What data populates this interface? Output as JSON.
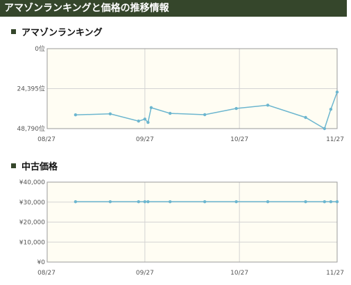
{
  "header": {
    "title": "アマゾンランキングと価格の推移情報"
  },
  "sections": {
    "ranking_title": "アマゾンランキング",
    "used_price_title": "中古価格"
  },
  "colors": {
    "header_bg": "#35462b",
    "plot_bg": "#fffdf3",
    "line": "#6cb6cf",
    "grid": "#d3d3d3"
  },
  "chart_data": [
    {
      "type": "line",
      "title": "アマゾンランキング",
      "inverted_y": true,
      "ylim": [
        0,
        48790
      ],
      "y_tick_labels": [
        "0位",
        "24,395位",
        "48,790位"
      ],
      "x_tick_labels": [
        "08/27",
        "09/27",
        "10/27",
        "11/27"
      ],
      "xlim": [
        "08/27",
        "11/27"
      ],
      "series": [
        {
          "points": [
            {
              "x": "09/05",
              "y": 40400
            },
            {
              "x": "09/16",
              "y": 39800
            },
            {
              "x": "09/25",
              "y": 44200
            },
            {
              "x": "09/27",
              "y": 43000
            },
            {
              "x": "09/28",
              "y": 45000
            },
            {
              "x": "09/29",
              "y": 36000
            },
            {
              "x": "10/05",
              "y": 39500
            },
            {
              "x": "10/16",
              "y": 40300
            },
            {
              "x": "10/26",
              "y": 36500
            },
            {
              "x": "11/05",
              "y": 34500
            },
            {
              "x": "11/17",
              "y": 42000
            },
            {
              "x": "11/23",
              "y": 48790
            },
            {
              "x": "11/25",
              "y": 37000
            },
            {
              "x": "11/27",
              "y": 26500
            }
          ]
        }
      ],
      "grid": true
    },
    {
      "type": "line",
      "title": "中古価格",
      "ylim": [
        0,
        40000
      ],
      "y_tick_labels": [
        "¥0",
        "¥10,000",
        "¥20,000",
        "¥30,000",
        "¥40,000"
      ],
      "x_tick_labels": [
        "08/27",
        "09/27",
        "10/27",
        "11/27"
      ],
      "xlim": [
        "08/27",
        "11/27"
      ],
      "series": [
        {
          "points": [
            {
              "x": "09/05",
              "y": 30200
            },
            {
              "x": "09/16",
              "y": 30200
            },
            {
              "x": "09/25",
              "y": 30200
            },
            {
              "x": "09/27",
              "y": 30200
            },
            {
              "x": "09/28",
              "y": 30200
            },
            {
              "x": "10/05",
              "y": 30200
            },
            {
              "x": "10/16",
              "y": 30200
            },
            {
              "x": "10/26",
              "y": 30200
            },
            {
              "x": "11/05",
              "y": 30200
            },
            {
              "x": "11/17",
              "y": 30200
            },
            {
              "x": "11/23",
              "y": 30200
            },
            {
              "x": "11/25",
              "y": 30200
            },
            {
              "x": "11/27",
              "y": 30200
            }
          ]
        }
      ],
      "grid": true
    }
  ]
}
